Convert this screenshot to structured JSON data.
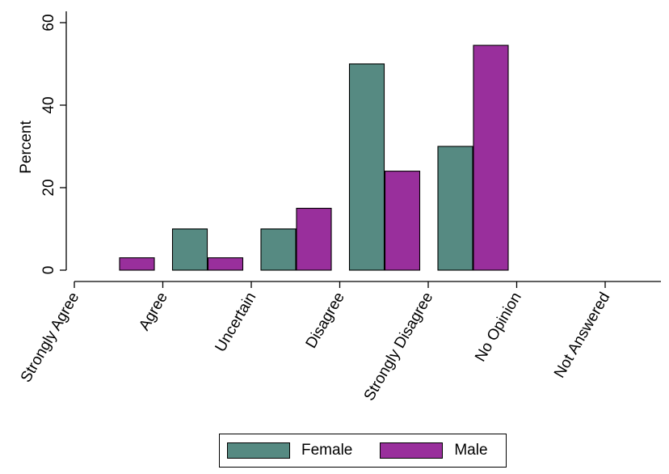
{
  "chart_data": {
    "type": "bar",
    "ylabel": "Percent",
    "ylim": [
      0,
      62
    ],
    "yticks": [
      0,
      20,
      40,
      60
    ],
    "categories": [
      "Strongly Agree",
      "Agree",
      "Uncertain",
      "Disagree",
      "Strongly Disagree",
      "No Opinion",
      "Not Answered"
    ],
    "series": [
      {
        "name": "Female",
        "color": "#568a82",
        "values": [
          0,
          10,
          10,
          50,
          30,
          0,
          0
        ]
      },
      {
        "name": "Male",
        "color": "#992f9c",
        "values": [
          3,
          3,
          15,
          24,
          54.5,
          0,
          0
        ]
      }
    ],
    "legend": {
      "position": "bottom"
    },
    "grid": false
  }
}
